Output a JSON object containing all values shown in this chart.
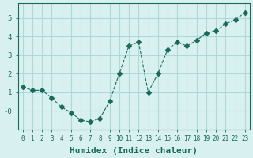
{
  "x": [
    0,
    1,
    2,
    3,
    4,
    5,
    6,
    7,
    8,
    9,
    10,
    11,
    12,
    13,
    14,
    15,
    16,
    17,
    18,
    19,
    20,
    21,
    22,
    23
  ],
  "y": [
    1.3,
    1.1,
    1.1,
    0.7,
    0.2,
    -0.1,
    -0.5,
    -0.6,
    -0.4,
    0.5,
    2.0,
    3.5,
    3.7,
    1.0,
    2.0,
    3.3,
    3.7,
    3.5,
    3.8,
    4.2,
    4.3,
    4.7,
    4.9,
    5.3
  ],
  "line_color": "#1a6b5a",
  "marker": "D",
  "marker_size": 3,
  "bg_color": "#d8f0f0",
  "grid_color": "#b0d8d8",
  "axis_color": "#1a6b5a",
  "xlabel": "Humidex (Indice chaleur)",
  "xlabel_fontsize": 8,
  "xlim": [
    -0.5,
    23.5
  ],
  "ylim": [
    -1.0,
    5.8
  ]
}
